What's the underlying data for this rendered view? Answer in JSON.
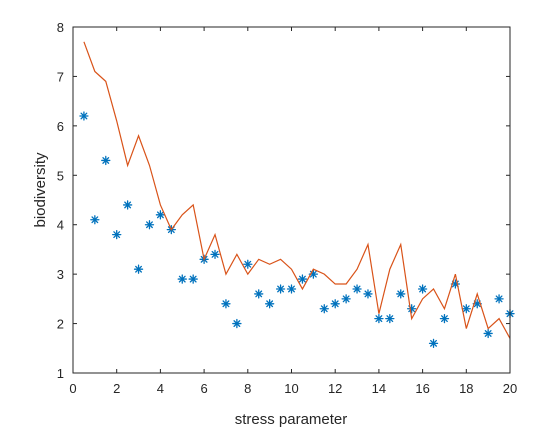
{
  "chart_data": {
    "type": "line",
    "xlabel": "stress parameter",
    "ylabel": "biodiversity",
    "xlim": [
      0,
      20
    ],
    "ylim": [
      1,
      8
    ],
    "xticks": [
      "0",
      "2",
      "4",
      "6",
      "8",
      "10",
      "12",
      "14",
      "16",
      "18",
      "20"
    ],
    "yticks": [
      "1",
      "2",
      "3",
      "4",
      "5",
      "6",
      "7",
      "8"
    ],
    "grid": false,
    "series": [
      {
        "style": "scatter",
        "marker": "asterisk",
        "color": "#0072BD",
        "x": [
          0.5,
          1,
          1.5,
          2,
          2.5,
          3,
          3.5,
          4,
          4.5,
          5,
          5.5,
          6,
          6.5,
          7,
          7.5,
          8,
          8.5,
          9,
          9.5,
          10,
          10.5,
          11,
          11.5,
          12,
          12.5,
          13,
          13.5,
          14,
          14.5,
          15,
          15.5,
          16,
          16.5,
          17,
          17.5,
          18,
          18.5,
          19,
          19.5,
          20
        ],
        "y": [
          6.2,
          4.1,
          5.3,
          3.8,
          4.4,
          3.1,
          4.0,
          4.2,
          3.9,
          2.9,
          2.9,
          3.3,
          3.4,
          2.4,
          2.0,
          3.2,
          2.6,
          2.4,
          2.7,
          2.7,
          2.9,
          3.0,
          2.3,
          2.4,
          2.5,
          2.7,
          2.6,
          2.1,
          2.1,
          2.6,
          2.3,
          2.7,
          1.6,
          2.1,
          2.8,
          2.3,
          2.4,
          1.8,
          2.5,
          2.2
        ]
      },
      {
        "style": "line",
        "color": "#D95319",
        "x": [
          0.5,
          1,
          1.5,
          2,
          2.5,
          3,
          3.5,
          4,
          4.5,
          5,
          5.5,
          6,
          6.5,
          7,
          7.5,
          8,
          8.5,
          9,
          9.5,
          10,
          10.5,
          11,
          11.5,
          12,
          12.5,
          13,
          13.5,
          14,
          14.5,
          15,
          15.5,
          16,
          16.5,
          17,
          17.5,
          18,
          18.5,
          19,
          19.5,
          20
        ],
        "y": [
          7.7,
          7.1,
          6.9,
          6.1,
          5.2,
          5.8,
          5.2,
          4.4,
          3.9,
          4.2,
          4.4,
          3.3,
          3.8,
          3.0,
          3.4,
          3.0,
          3.3,
          3.2,
          3.3,
          3.1,
          2.7,
          3.1,
          3.0,
          2.8,
          2.8,
          3.1,
          3.6,
          2.2,
          3.1,
          3.6,
          2.1,
          2.5,
          2.7,
          2.3,
          3.0,
          1.9,
          2.6,
          1.9,
          2.1,
          1.7
        ]
      }
    ]
  }
}
